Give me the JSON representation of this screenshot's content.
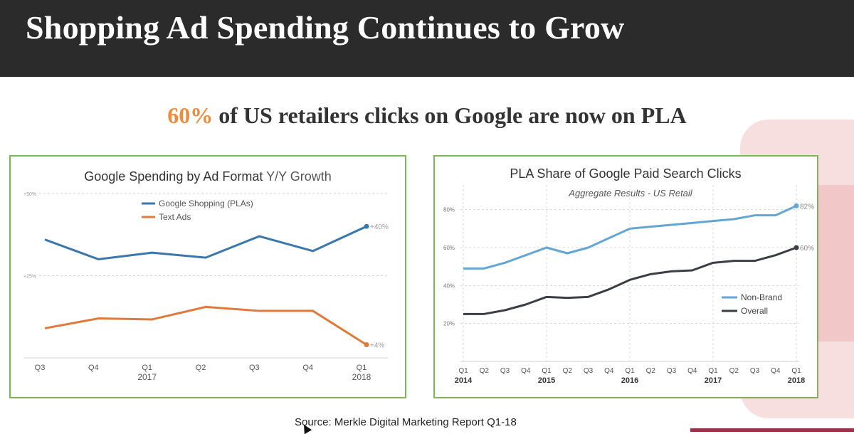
{
  "slide": {
    "title": "Shopping Ad Spending Continues to Grow",
    "subtitle_pct": "60%",
    "subtitle_rest": " of US retailers clicks on Google are now on PLA",
    "source": "Source: Merkle Digital Marketing Report Q1-18"
  },
  "colors": {
    "accent": "#f08a3c",
    "panel_border": "#79b853",
    "header_bg": "#2b2b2b"
  },
  "chart_data": [
    {
      "type": "line",
      "title": "Google Spending by Ad Format",
      "title_suffix": "Y/Y Growth",
      "categories": [
        "Q3",
        "Q4",
        "Q1",
        "Q2",
        "Q3",
        "Q4",
        "Q1"
      ],
      "category_years": [
        "",
        "",
        "2017",
        "",
        "",
        "",
        "2018"
      ],
      "y_ticks": [
        "+50%",
        "+25%"
      ],
      "series": [
        {
          "name": "Google Shopping (PLAs)",
          "color": "#3a77ab",
          "values": [
            36,
            30,
            32,
            30.5,
            37,
            32.5,
            40
          ],
          "end_label": "+40%"
        },
        {
          "name": "Text Ads",
          "color": "#e07a3a",
          "values": [
            9,
            12,
            11.7,
            15.5,
            14.3,
            14.3,
            4
          ],
          "end_label": "+4%"
        }
      ],
      "ylim": [
        0,
        50
      ]
    },
    {
      "type": "line",
      "title": "PLA Share of Google Paid Search Clicks",
      "subtitle": "Aggregate Results - US Retail",
      "categories": [
        "Q1",
        "Q2",
        "Q3",
        "Q4",
        "Q1",
        "Q2",
        "Q3",
        "Q4",
        "Q1",
        "Q2",
        "Q3",
        "Q4",
        "Q1",
        "Q2",
        "Q3",
        "Q4",
        "Q1"
      ],
      "year_labels": [
        "2014",
        "",
        "",
        "",
        "2015",
        "",
        "",
        "",
        "2016",
        "",
        "",
        "",
        "2017",
        "",
        "",
        "",
        "2018"
      ],
      "y_ticks": [
        "80%",
        "60%",
        "40%",
        "20%"
      ],
      "series": [
        {
          "name": "Non-Brand",
          "color": "#63a6d3",
          "values": [
            49,
            49,
            52,
            56,
            60,
            57,
            60,
            65,
            70,
            71,
            72,
            73,
            74,
            75,
            77,
            77,
            82
          ],
          "end_label": "82%"
        },
        {
          "name": "Overall",
          "color": "#3a3f46",
          "values": [
            25,
            25,
            27,
            30,
            34,
            33.5,
            34,
            38,
            43,
            46,
            47.5,
            48,
            52,
            53,
            53,
            56,
            60
          ],
          "end_label": "60%"
        }
      ],
      "ylim": [
        0,
        90
      ]
    }
  ]
}
